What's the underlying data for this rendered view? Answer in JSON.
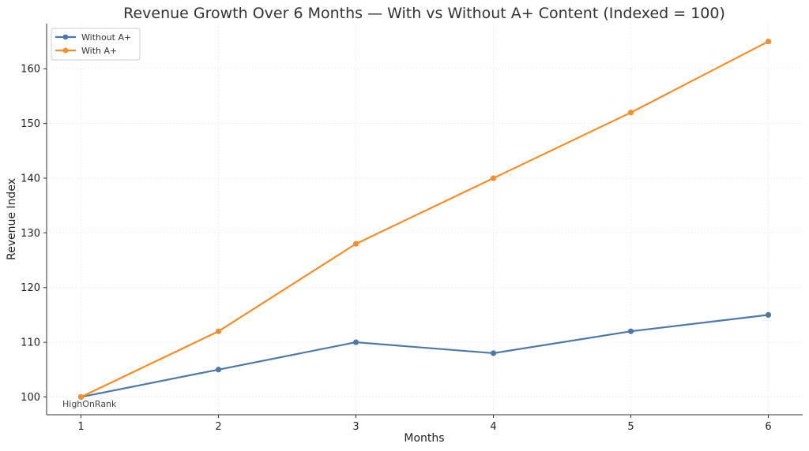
{
  "chart_data": {
    "type": "line",
    "title": "Revenue Growth Over 6 Months — With vs Without A+ Content (Indexed = 100)",
    "xlabel": "Months",
    "ylabel": "Revenue Index",
    "x": [
      1,
      2,
      3,
      4,
      5,
      6
    ],
    "xticks": [
      "1",
      "2",
      "3",
      "4",
      "5",
      "6"
    ],
    "yticks": [
      "100",
      "110",
      "120",
      "130",
      "140",
      "150",
      "160"
    ],
    "xlim": [
      0.75,
      6.25
    ],
    "ylim": [
      96.75,
      168.25
    ],
    "grid": true,
    "legend_position": "top-left",
    "series": [
      {
        "name": "Without A+",
        "color": "#4e79a7",
        "values": [
          100,
          105,
          110,
          108,
          112,
          115
        ]
      },
      {
        "name": "With A+",
        "color": "#f28e2b",
        "values": [
          100,
          112,
          128,
          140,
          152,
          165
        ]
      }
    ],
    "annotation": "HighOnRank"
  }
}
